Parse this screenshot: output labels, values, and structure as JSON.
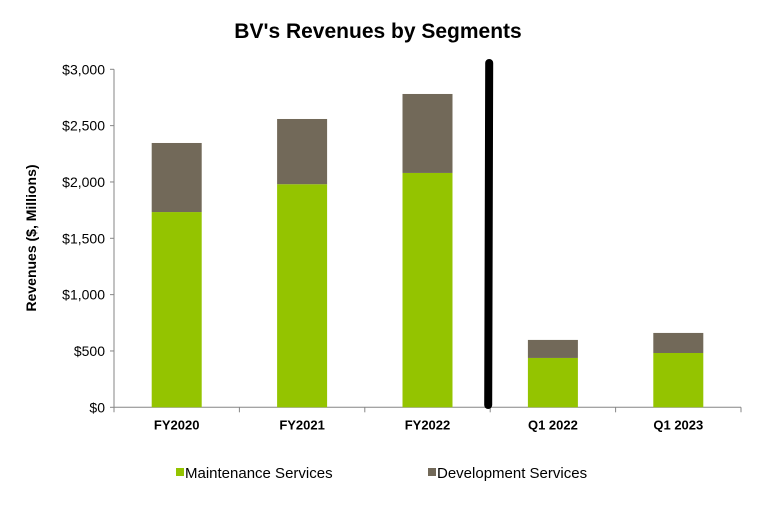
{
  "chart_data": {
    "type": "bar",
    "stacked": true,
    "title": "BV's Revenues by Segments",
    "xlabel": "",
    "ylabel": "Revenues ($, Millions)",
    "ylim": [
      0,
      3000
    ],
    "yticks": [
      0,
      500,
      1000,
      1500,
      2000,
      2500,
      3000
    ],
    "ytick_labels": [
      "$0",
      "$500",
      "$1,000",
      "$1,500",
      "$2,000",
      "$2,500",
      "$3,000"
    ],
    "categories": [
      "FY2020",
      "FY2021",
      "FY2022",
      "Q1 2022",
      "Q1 2023"
    ],
    "series": [
      {
        "name": "Maintenance Services",
        "color": "#94c400",
        "values": [
          1733,
          1980,
          2080,
          438,
          482
        ]
      },
      {
        "name": "Development Services",
        "color": "#726959",
        "values": [
          613,
          579,
          701,
          160,
          178
        ]
      }
    ],
    "grid": false,
    "legend": "bottom",
    "divider_after_category": 2
  }
}
